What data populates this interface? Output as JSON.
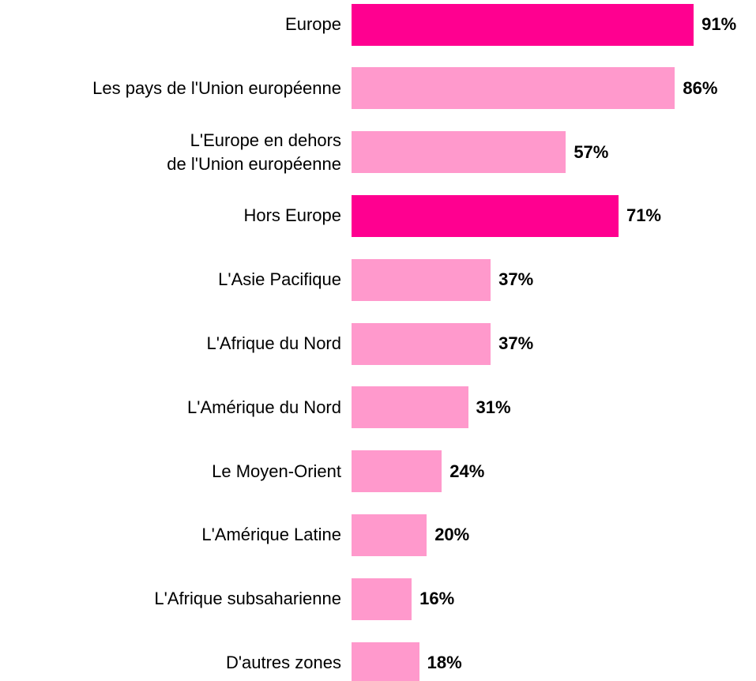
{
  "chart_data": {
    "type": "barh",
    "categories": [
      "Europe",
      "Les pays de l'Union européenne",
      "L'Europe en dehors\nde l'Union européenne",
      "Hors Europe",
      "L'Asie Pacifique",
      "L'Afrique du Nord",
      "L'Amérique du Nord",
      "Le Moyen-Orient",
      "L'Amérique Latine",
      "L'Afrique subsaharienne",
      "D'autres zones"
    ],
    "values": [
      91,
      86,
      57,
      71,
      37,
      37,
      31,
      24,
      20,
      16,
      18
    ],
    "value_labels": [
      "91%",
      "86%",
      "57%",
      "71%",
      "37%",
      "37%",
      "31%",
      "24%",
      "20%",
      "16%",
      "18%"
    ],
    "colors": [
      "#ff0090",
      "#ff99cc",
      "#ff99cc",
      "#ff0090",
      "#ff99cc",
      "#ff99cc",
      "#ff99cc",
      "#ff99cc",
      "#ff99cc",
      "#ff99cc",
      "#ff99cc"
    ],
    "xlim": [
      0,
      100
    ]
  }
}
